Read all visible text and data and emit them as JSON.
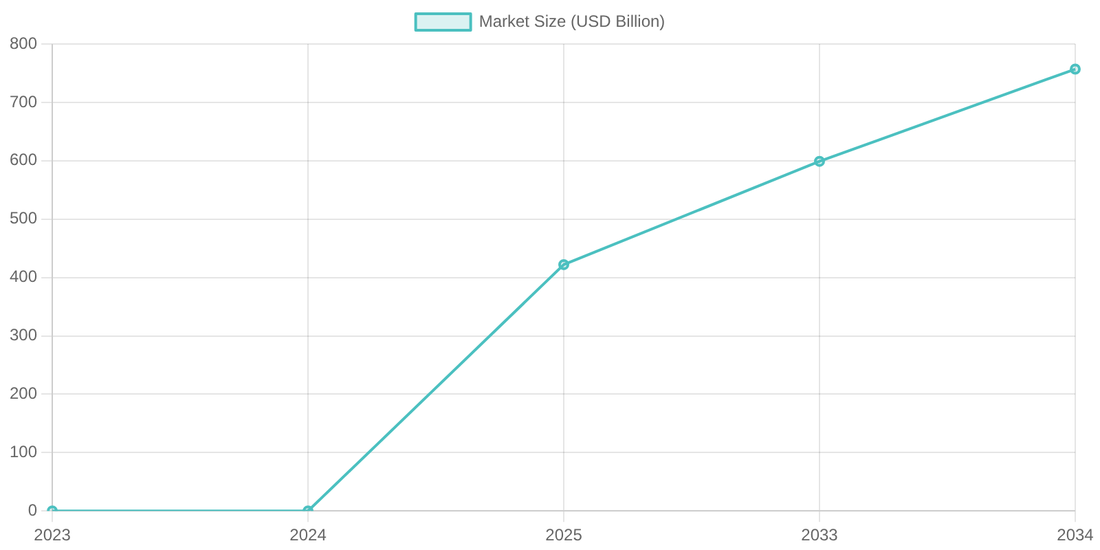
{
  "chart_data": {
    "type": "line",
    "categories": [
      "2023",
      "2024",
      "2025",
      "2033",
      "2034"
    ],
    "series": [
      {
        "name": "Market Size (USD Billion)",
        "color": "#4bc0c0",
        "values": [
          0,
          0,
          422,
          599,
          757
        ]
      }
    ],
    "ylim": [
      0,
      800
    ],
    "yticks": [
      0,
      100,
      200,
      300,
      400,
      500,
      600,
      700,
      800
    ],
    "grid": true,
    "legend": "top",
    "marker": "circle",
    "line_style": "solid"
  }
}
